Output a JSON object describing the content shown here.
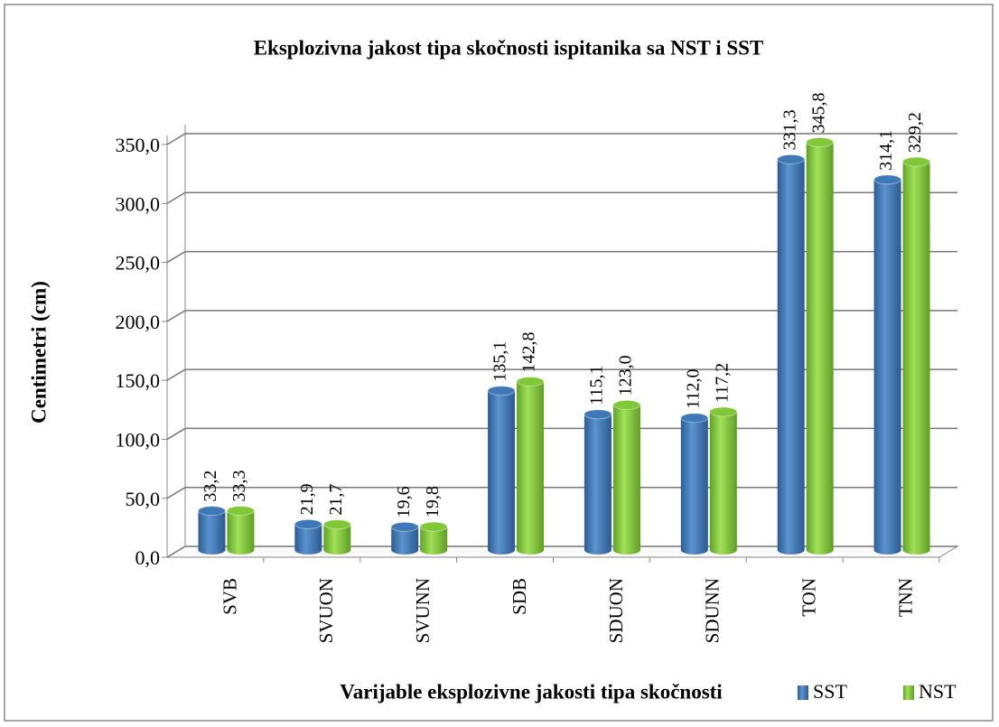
{
  "chart_data": {
    "type": "bar",
    "title": "Eksplozivna jakost tipa skočnosti ispitanika sa NST i SST",
    "x_label": "Varijable eksplozivne jakosti tipa skočnosti",
    "y_label": "Centimetri (cm)",
    "categories": [
      "SVB",
      "SVUON",
      "SVUNN",
      "SDB",
      "SDUON",
      "SDUNN",
      "TON",
      "TNN"
    ],
    "series": [
      {
        "name": "SST",
        "color": "#3f78b6",
        "values": [
          33.2,
          21.9,
          19.6,
          135.1,
          115.1,
          112.0,
          331.3,
          314.1
        ],
        "value_labels": [
          "33,2",
          "21,9",
          "19,6",
          "135,1",
          "115,1",
          "112,0",
          "331,3",
          "314,1"
        ]
      },
      {
        "name": "NST",
        "color": "#80c838",
        "values": [
          33.3,
          21.7,
          19.8,
          142.8,
          123.0,
          117.2,
          345.8,
          329.2
        ],
        "value_labels": [
          "33,3",
          "21,7",
          "19,8",
          "142,8",
          "123,0",
          "117,2",
          "345,8",
          "329,2"
        ]
      }
    ],
    "ylim": [
      0,
      350
    ],
    "yticks": [
      {
        "value": 0,
        "label": "0,0"
      },
      {
        "value": 50,
        "label": "50,0"
      },
      {
        "value": 100,
        "label": "100,0"
      },
      {
        "value": 150,
        "label": "150,0"
      },
      {
        "value": 200,
        "label": "200,0"
      },
      {
        "value": 250,
        "label": "250,0"
      },
      {
        "value": 300,
        "label": "300,0"
      },
      {
        "value": 350,
        "label": "350,0"
      }
    ],
    "grid": true,
    "legend": "bottom-right"
  }
}
